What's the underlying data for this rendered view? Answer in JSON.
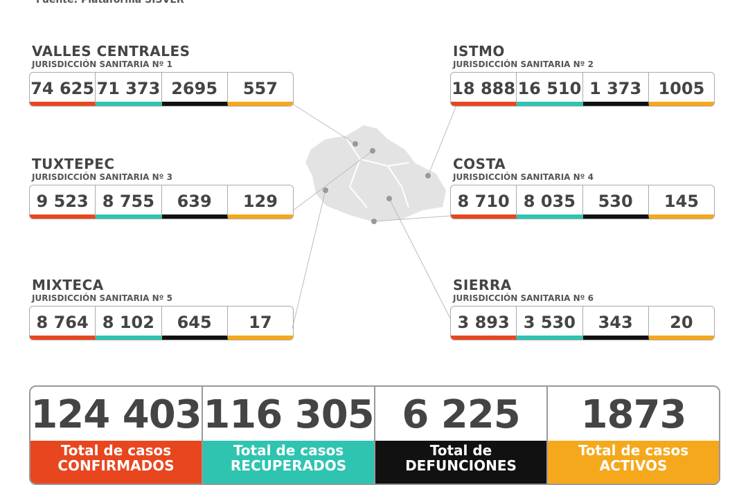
{
  "source": "Fuente: Plataforma SISVER",
  "regions": [
    {
      "name": "VALLES CENTRALES",
      "subtitle": "JURISDICCIÓN SANITARIA Nº 1",
      "values": [
        "74 625",
        "71 373",
        "2695",
        "557"
      ]
    },
    {
      "name": "TUXTEPEC",
      "subtitle": "JURISDICCIÓN SANITARIA Nº 3",
      "values": [
        "9 523",
        "8 755",
        "639",
        "129"
      ]
    },
    {
      "name": "MIXTECA",
      "subtitle": "JURISDICCIÓN SANITARIA Nº 5",
      "values": [
        "8 764",
        "8 102",
        "645",
        "17"
      ]
    },
    {
      "name": "ISTMO",
      "subtitle": "JURISDICCIÓN SANITARIA Nº 2",
      "values": [
        "18 888",
        "16 510",
        "1 373",
        "1005"
      ]
    },
    {
      "name": "COSTA",
      "subtitle": "JURISDICCIÓN SANITARIA Nº 4",
      "values": [
        "8 710",
        "8 035",
        "530",
        "145"
      ]
    },
    {
      "name": "SIERRA",
      "subtitle": "JURISDICCIÓN SANITARIA Nº 6",
      "values": [
        "3 893",
        "3 530",
        "343",
        "20"
      ]
    }
  ],
  "totals": [
    {
      "value": "124 403",
      "label": [
        "Total de casos",
        "CONFIRMADOS"
      ]
    },
    {
      "value": "116 305",
      "label": [
        "Total de casos",
        "RECUPERADOS"
      ]
    },
    {
      "value": "6 225",
      "label": [
        "Total de",
        "DEFUNCIONES"
      ]
    },
    {
      "value": "1873",
      "label": [
        "Total de casos",
        "ACTIVOS"
      ]
    }
  ]
}
